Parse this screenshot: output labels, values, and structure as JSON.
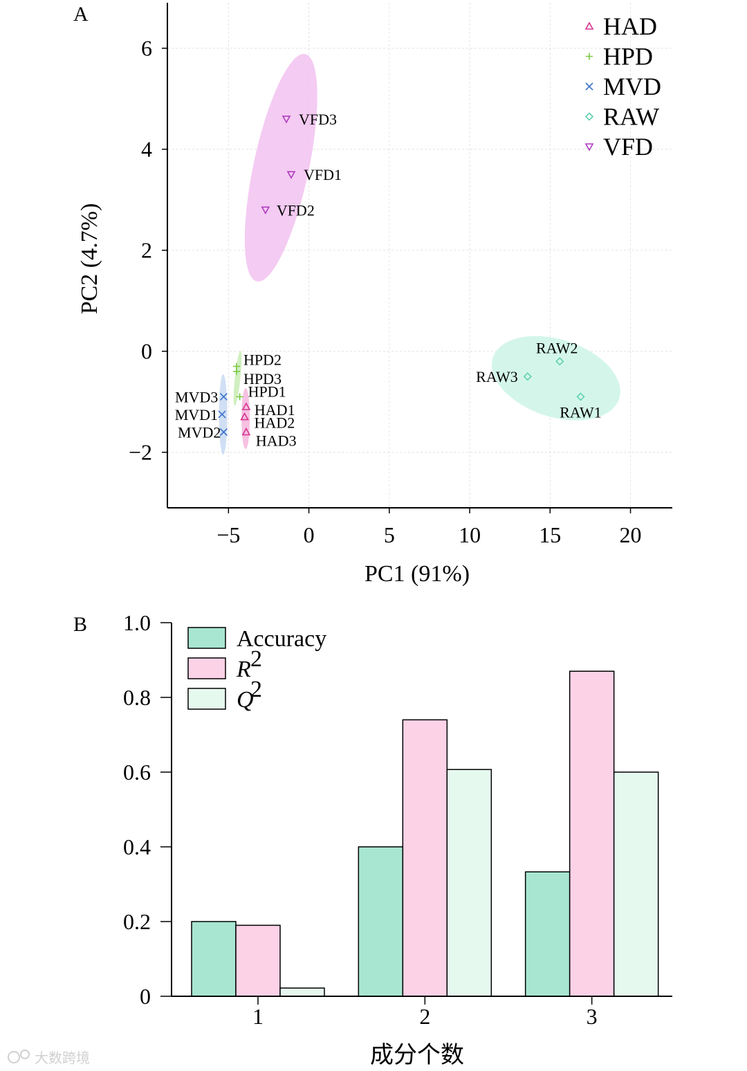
{
  "panel_a_label": "A",
  "panel_b_label": "B",
  "watermark": "大数跨境",
  "chart_data": [
    {
      "type": "scatter",
      "panel": "A",
      "title": "",
      "xlabel": "PC1 (91%)",
      "ylabel": "PC2 (4.7%)",
      "xlim": [
        -8.8,
        22.6
      ],
      "ylim": [
        -3.1,
        6.9
      ],
      "xticks": [
        -5,
        0,
        5,
        10,
        15,
        20
      ],
      "xtick_labels": [
        "−5",
        "0",
        "5",
        "10",
        "15",
        "20"
      ],
      "yticks": [
        -2,
        0,
        2,
        4,
        6
      ],
      "ytick_labels": [
        "−2",
        "0",
        "2",
        "4",
        "6"
      ],
      "grid": true,
      "legend_position": "top-right",
      "series": [
        {
          "name": "HAD",
          "marker": "triangle-up",
          "color": "#d6338f",
          "ellipse_color": "#f4b6dc",
          "points": [
            {
              "label": "HAD1",
              "x": -3.9,
              "y": -1.1
            },
            {
              "label": "HAD2",
              "x": -4.0,
              "y": -1.3
            },
            {
              "label": "HAD3",
              "x": -3.9,
              "y": -1.6
            }
          ]
        },
        {
          "name": "HPD",
          "marker": "plus",
          "color": "#7ac943",
          "ellipse_color": "#c8ecb4",
          "points": [
            {
              "label": "HPD1",
              "x": -4.3,
              "y": -0.9
            },
            {
              "label": "HPD2",
              "x": -4.5,
              "y": -0.3
            },
            {
              "label": "HPD3",
              "x": -4.5,
              "y": -0.4
            }
          ]
        },
        {
          "name": "MVD",
          "marker": "cross",
          "color": "#3b73c9",
          "ellipse_color": "#c9d9f2",
          "points": [
            {
              "label": "MVD3",
              "x": -5.3,
              "y": -0.9
            },
            {
              "label": "MVD1",
              "x": -5.4,
              "y": -1.25
            },
            {
              "label": "MVD2",
              "x": -5.3,
              "y": -1.6
            }
          ]
        },
        {
          "name": "RAW",
          "marker": "diamond",
          "color": "#5fd0b0",
          "ellipse_color": "#ccf5e6",
          "points": [
            {
              "label": "RAW1",
              "x": 16.9,
              "y": -0.9
            },
            {
              "label": "RAW2",
              "x": 15.6,
              "y": -0.2
            },
            {
              "label": "RAW3",
              "x": 13.6,
              "y": -0.5
            }
          ]
        },
        {
          "name": "VFD",
          "marker": "triangle-down",
          "color": "#b03cc0",
          "ellipse_color": "#f2c2f0",
          "points": [
            {
              "label": "VFD3",
              "x": -1.4,
              "y": 4.6
            },
            {
              "label": "VFD1",
              "x": -1.1,
              "y": 3.5
            },
            {
              "label": "VFD2",
              "x": -2.7,
              "y": 2.8
            }
          ]
        }
      ]
    },
    {
      "type": "bar",
      "panel": "B",
      "title": "",
      "xlabel": "成分个数",
      "ylabel": "",
      "categories": [
        "1",
        "2",
        "3"
      ],
      "ylim": [
        0,
        1.0
      ],
      "yticks": [
        0,
        0.2,
        0.4,
        0.6,
        0.8,
        1.0
      ],
      "ytick_labels": [
        "0",
        "0.2",
        "0.4",
        "0.6",
        "0.8",
        "1.0"
      ],
      "grid": false,
      "legend_position": "top-left",
      "series": [
        {
          "name": "Accuracy",
          "sup": "",
          "color": "#a8e6d2",
          "values": [
            0.2,
            0.4,
            0.333
          ]
        },
        {
          "name": "R",
          "sup": "2",
          "color": "#fcd2e6",
          "values": [
            0.19,
            0.74,
            0.87
          ]
        },
        {
          "name": "Q",
          "sup": "2",
          "color": "#e6f9ef",
          "values": [
            0.022,
            0.607,
            0.6
          ]
        }
      ]
    }
  ]
}
